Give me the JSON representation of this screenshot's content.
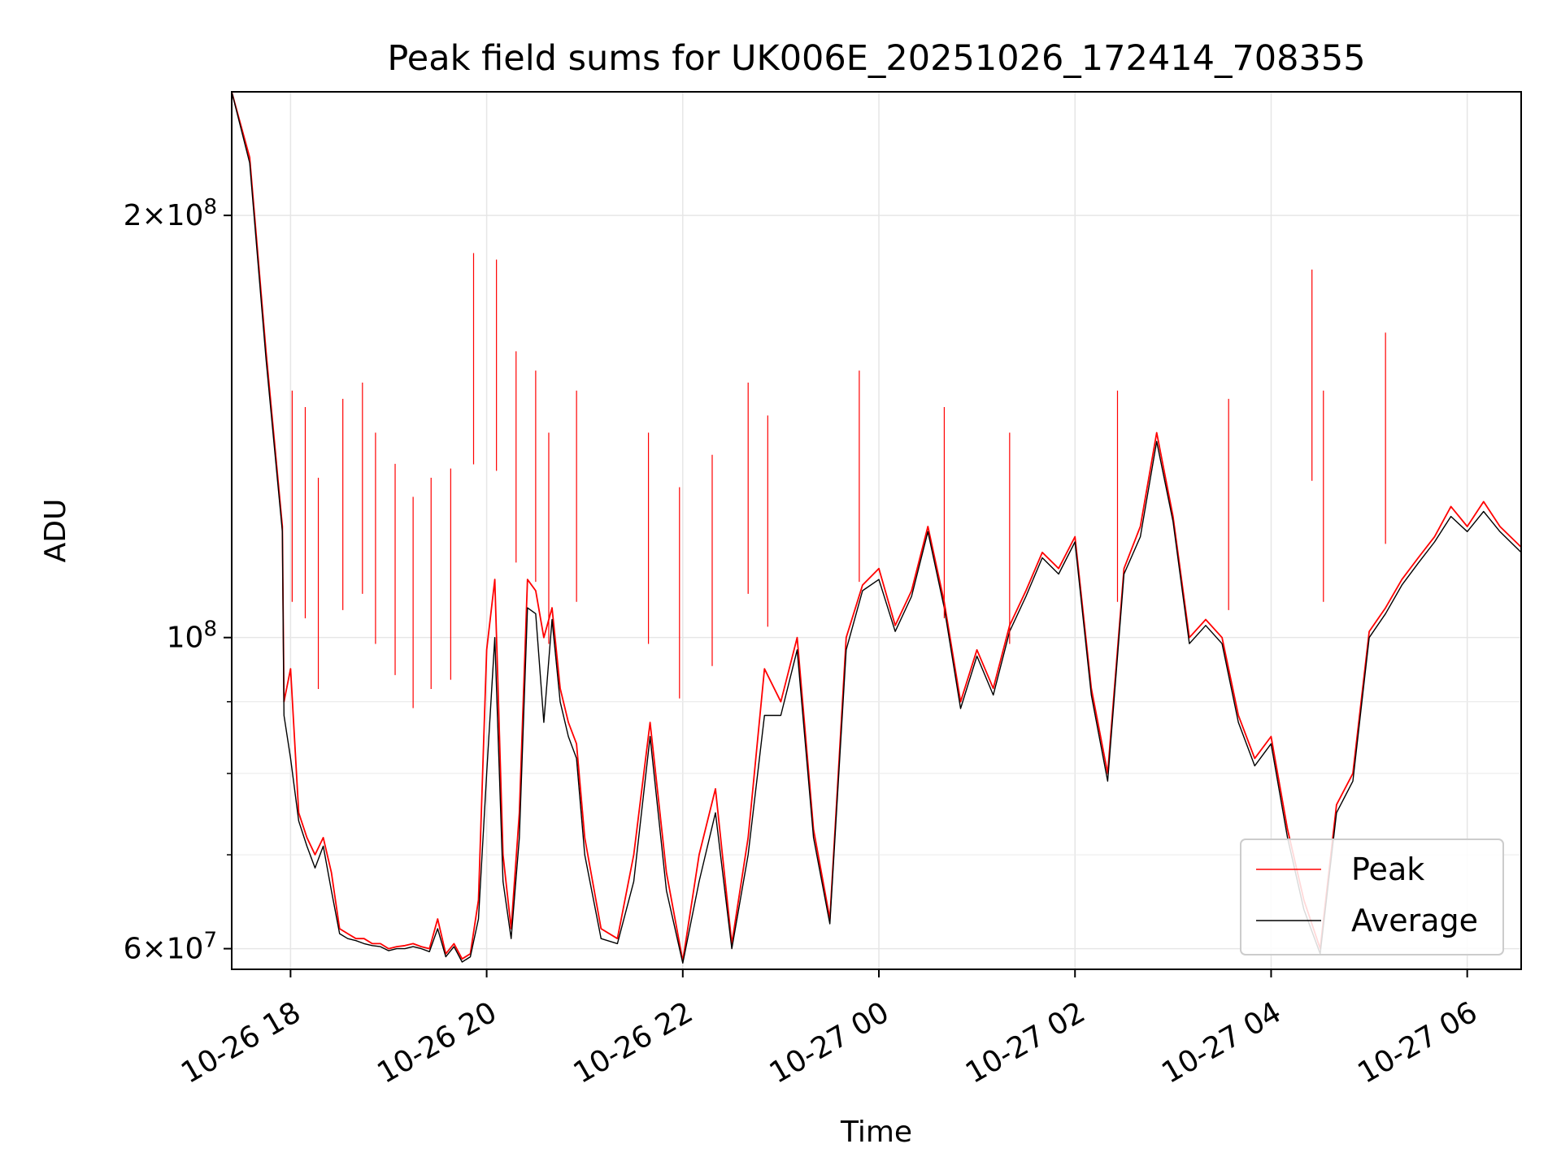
{
  "chart_data": {
    "type": "line",
    "title": "Peak field sums for UK006E_20251026_172414_708355",
    "xlabel": "Time",
    "ylabel": "ADU",
    "yscale": "log",
    "ylim": [
      58000000,
      245000000
    ],
    "xlim": [
      "10-26 17:24",
      "10-27 06:33"
    ],
    "grid": true,
    "legend_position": "lower-right",
    "x_ticks": [
      "10-26 18",
      "10-26 20",
      "10-26 22",
      "10-27 00",
      "10-27 02",
      "10-27 04",
      "10-27 06"
    ],
    "y_ticks": [
      {
        "label_base": "2×10",
        "label_exp": "8",
        "value": 200000000
      },
      {
        "label_base": "10",
        "label_exp": "8",
        "value": 100000000
      },
      {
        "label_base": "6×10",
        "label_exp": "7",
        "value": 60000000
      }
    ],
    "y_minor_ticks": [
      70000000,
      80000000,
      90000000
    ],
    "series": [
      {
        "name": "Peak",
        "color": "#ff0000",
        "x": [
          "10-26 17:24",
          "10-26 17:35",
          "10-26 17:45",
          "10-26 17:55",
          "10-26 17:56",
          "10-26 18:00",
          "10-26 18:05",
          "10-26 18:10",
          "10-26 18:15",
          "10-26 18:20",
          "10-26 18:25",
          "10-26 18:30",
          "10-26 18:35",
          "10-26 18:40",
          "10-26 18:45",
          "10-26 18:50",
          "10-26 18:55",
          "10-26 19:00",
          "10-26 19:05",
          "10-26 19:10",
          "10-26 19:15",
          "10-26 19:20",
          "10-26 19:25",
          "10-26 19:30",
          "10-26 19:35",
          "10-26 19:40",
          "10-26 19:45",
          "10-26 19:50",
          "10-26 19:55",
          "10-26 20:00",
          "10-26 20:05",
          "10-26 20:10",
          "10-26 20:15",
          "10-26 20:20",
          "10-26 20:25",
          "10-26 20:30",
          "10-26 20:35",
          "10-26 20:40",
          "10-26 20:45",
          "10-26 20:50",
          "10-26 20:55",
          "10-26 21:00",
          "10-26 21:10",
          "10-26 21:20",
          "10-26 21:30",
          "10-26 21:40",
          "10-26 21:50",
          "10-26 22:00",
          "10-26 22:10",
          "10-26 22:20",
          "10-26 22:30",
          "10-26 22:40",
          "10-26 22:50",
          "10-26 23:00",
          "10-26 23:10",
          "10-26 23:20",
          "10-26 23:30",
          "10-26 23:40",
          "10-26 23:50",
          "10-27 00:00",
          "10-27 00:10",
          "10-27 00:20",
          "10-27 00:30",
          "10-27 00:40",
          "10-27 00:50",
          "10-27 01:00",
          "10-27 01:10",
          "10-27 01:20",
          "10-27 01:30",
          "10-27 01:40",
          "10-27 01:50",
          "10-27 02:00",
          "10-27 02:10",
          "10-27 02:20",
          "10-27 02:30",
          "10-27 02:40",
          "10-27 02:50",
          "10-27 03:00",
          "10-27 03:10",
          "10-27 03:20",
          "10-27 03:30",
          "10-27 03:40",
          "10-27 03:50",
          "10-27 04:00",
          "10-27 04:10",
          "10-27 04:20",
          "10-27 04:30",
          "10-27 04:40",
          "10-27 04:50",
          "10-27 05:00",
          "10-27 05:10",
          "10-27 05:20",
          "10-27 05:30",
          "10-27 05:40",
          "10-27 05:50",
          "10-27 06:00",
          "10-27 06:10",
          "10-27 06:20",
          "10-27 06:33"
        ],
        "y": [
          245000000,
          220000000,
          160000000,
          120000000,
          90000000,
          95000000,
          75000000,
          72000000,
          70000000,
          72000000,
          68000000,
          62000000,
          61500000,
          61000000,
          61000000,
          60500000,
          60500000,
          60000000,
          60200000,
          60300000,
          60500000,
          60200000,
          60000000,
          63000000,
          59500000,
          60500000,
          59000000,
          59500000,
          65000000,
          98000000,
          110000000,
          70000000,
          62000000,
          75000000,
          110000000,
          108000000,
          100000000,
          105000000,
          92000000,
          87000000,
          84000000,
          72000000,
          62000000,
          61000000,
          70000000,
          87000000,
          68000000,
          58800000,
          70000000,
          78000000,
          60500000,
          72000000,
          95000000,
          90000000,
          100000000,
          73000000,
          63000000,
          100000000,
          109000000,
          112000000,
          102000000,
          108000000,
          120000000,
          106000000,
          90000000,
          98000000,
          92000000,
          102000000,
          108000000,
          115000000,
          112000000,
          118000000,
          92000000,
          80000000,
          112000000,
          120000000,
          140000000,
          122000000,
          100000000,
          103000000,
          100000000,
          88000000,
          82000000,
          85000000,
          73000000,
          65000000,
          60000000,
          76000000,
          80000000,
          101000000,
          105000000,
          110000000,
          114000000,
          118000000,
          124000000,
          120000000,
          125000000,
          120000000,
          116000000
        ]
      },
      {
        "name": "Average",
        "color": "#000000",
        "x": [
          "10-26 17:24",
          "10-26 17:35",
          "10-26 17:45",
          "10-26 17:55",
          "10-26 17:56",
          "10-26 18:00",
          "10-26 18:05",
          "10-26 18:10",
          "10-26 18:15",
          "10-26 18:20",
          "10-26 18:25",
          "10-26 18:30",
          "10-26 18:35",
          "10-26 18:40",
          "10-26 18:45",
          "10-26 18:50",
          "10-26 18:55",
          "10-26 19:00",
          "10-26 19:05",
          "10-26 19:10",
          "10-26 19:15",
          "10-26 19:20",
          "10-26 19:25",
          "10-26 19:30",
          "10-26 19:35",
          "10-26 19:40",
          "10-26 19:45",
          "10-26 19:50",
          "10-26 19:55",
          "10-26 20:00",
          "10-26 20:05",
          "10-26 20:10",
          "10-26 20:15",
          "10-26 20:20",
          "10-26 20:25",
          "10-26 20:30",
          "10-26 20:35",
          "10-26 20:40",
          "10-26 20:45",
          "10-26 20:50",
          "10-26 20:55",
          "10-26 21:00",
          "10-26 21:10",
          "10-26 21:20",
          "10-26 21:30",
          "10-26 21:40",
          "10-26 21:50",
          "10-26 22:00",
          "10-26 22:10",
          "10-26 22:20",
          "10-26 22:30",
          "10-26 22:40",
          "10-26 22:50",
          "10-26 23:00",
          "10-26 23:10",
          "10-26 23:20",
          "10-26 23:30",
          "10-26 23:40",
          "10-26 23:50",
          "10-27 00:00",
          "10-27 00:10",
          "10-27 00:20",
          "10-27 00:30",
          "10-27 00:40",
          "10-27 00:50",
          "10-27 01:00",
          "10-27 01:10",
          "10-27 01:20",
          "10-27 01:30",
          "10-27 01:40",
          "10-27 01:50",
          "10-27 02:00",
          "10-27 02:10",
          "10-27 02:20",
          "10-27 02:30",
          "10-27 02:40",
          "10-27 02:50",
          "10-27 03:00",
          "10-27 03:10",
          "10-27 03:20",
          "10-27 03:30",
          "10-27 03:40",
          "10-27 03:50",
          "10-27 04:00",
          "10-27 04:10",
          "10-27 04:20",
          "10-27 04:30",
          "10-27 04:40",
          "10-27 04:50",
          "10-27 05:00",
          "10-27 05:10",
          "10-27 05:20",
          "10-27 05:30",
          "10-27 05:40",
          "10-27 05:50",
          "10-27 06:00",
          "10-27 06:10",
          "10-27 06:20",
          "10-27 06:33"
        ],
        "y": [
          245000000,
          218000000,
          158000000,
          119000000,
          88000000,
          82000000,
          74000000,
          71000000,
          68500000,
          71000000,
          66000000,
          61500000,
          61000000,
          60800000,
          60500000,
          60300000,
          60200000,
          59800000,
          60000000,
          60000000,
          60200000,
          60000000,
          59700000,
          62000000,
          59200000,
          60200000,
          58700000,
          59200000,
          63000000,
          80000000,
          100000000,
          67000000,
          61000000,
          72000000,
          105000000,
          104000000,
          87000000,
          103000000,
          90000000,
          85000000,
          82000000,
          70000000,
          61000000,
          60500000,
          67000000,
          85000000,
          66000000,
          58600000,
          67000000,
          75000000,
          60000000,
          70000000,
          88000000,
          88000000,
          98000000,
          72000000,
          62500000,
          98000000,
          108000000,
          110000000,
          101000000,
          107000000,
          119000000,
          105000000,
          89000000,
          97000000,
          91000000,
          101000000,
          107000000,
          114000000,
          111000000,
          117000000,
          91000000,
          79000000,
          111000000,
          118000000,
          138000000,
          121000000,
          99000000,
          102000000,
          99000000,
          87000000,
          81000000,
          84000000,
          72000000,
          64000000,
          59500000,
          75000000,
          79000000,
          100000000,
          104000000,
          109000000,
          113000000,
          117000000,
          122000000,
          119000000,
          123000000,
          119000000,
          115000000
        ]
      }
    ],
    "spikes": {
      "description": "",
      "times": [
        "10-26 18:01",
        "10-26 18:09",
        "10-26 18:17",
        "10-26 18:32",
        "10-26 18:44",
        "10-26 18:52",
        "10-26 19:04",
        "10-26 19:15",
        "10-26 19:26",
        "10-26 19:38",
        "10-26 19:52",
        "10-26 20:06",
        "10-26 20:18",
        "10-26 20:30",
        "10-26 20:38",
        "10-26 20:55",
        "10-26 21:39",
        "10-26 21:58",
        "10-26 22:18",
        "10-26 22:40",
        "10-26 22:52",
        "10-26 23:48",
        "10-27 00:40",
        "10-27 01:20",
        "10-27 02:26",
        "10-27 03:34",
        "10-27 04:25",
        "10-27 04:32",
        "10-27 05:10"
      ],
      "values": [
        150000000,
        146000000,
        130000000,
        148000000,
        152000000,
        140000000,
        133000000,
        126000000,
        130000000,
        132000000,
        188000000,
        186000000,
        160000000,
        155000000,
        140000000,
        150000000,
        140000000,
        128000000,
        135000000,
        152000000,
        144000000,
        155000000,
        146000000,
        140000000,
        150000000,
        148000000,
        183000000,
        150000000,
        165000000
      ]
    }
  }
}
